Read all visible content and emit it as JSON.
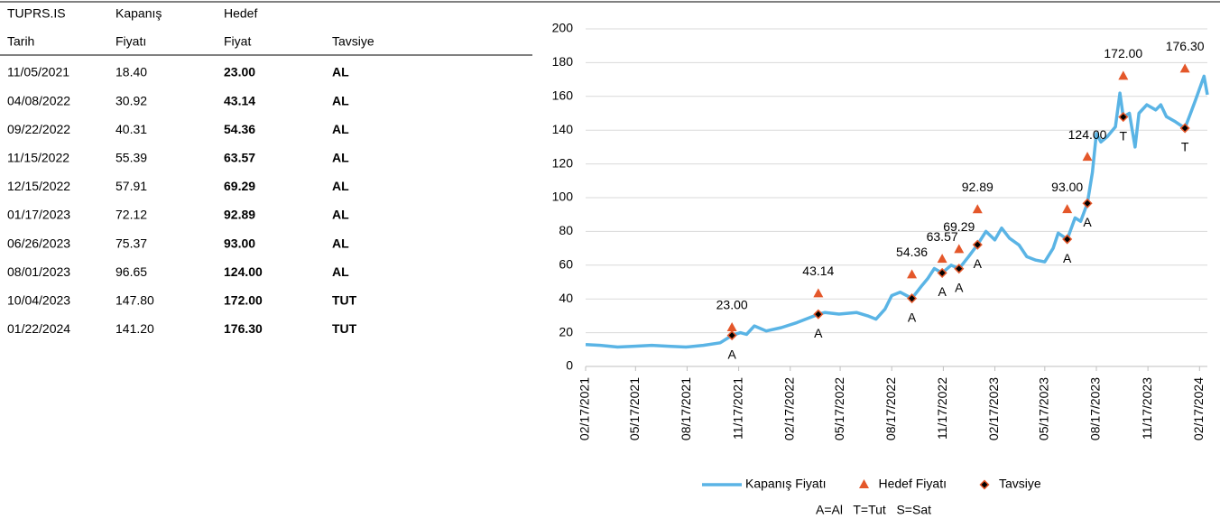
{
  "table": {
    "header": [
      [
        "TUPRS.IS",
        "Kapanış",
        "Hedef"
      ],
      [
        "Tarih",
        "Fiyatı",
        "Fiyat",
        "Tavsiye"
      ]
    ],
    "rows": [
      [
        "11/05/2021",
        "18.40",
        "23.00",
        "AL"
      ],
      [
        "04/08/2022",
        "30.92",
        "43.14",
        "AL"
      ],
      [
        "09/22/2022",
        "40.31",
        "54.36",
        "AL"
      ],
      [
        "11/15/2022",
        "55.39",
        "63.57",
        "AL"
      ],
      [
        "12/15/2022",
        "57.91",
        "69.29",
        "AL"
      ],
      [
        "01/17/2023",
        "72.12",
        "92.89",
        "AL"
      ],
      [
        "06/26/2023",
        "75.37",
        "93.00",
        "AL"
      ],
      [
        "08/01/2023",
        "96.65",
        "124.00",
        "AL"
      ],
      [
        "10/04/2023",
        "147.80",
        "172.00",
        "TUT"
      ],
      [
        "01/22/2024",
        "141.20",
        "176.30",
        "TUT"
      ]
    ]
  },
  "chart_data": {
    "type": "line",
    "xlim": [
      "02/17/2021",
      "03/02/2024"
    ],
    "xticks": [
      "02/17/2021",
      "05/17/2021",
      "08/17/2021",
      "11/17/2021",
      "02/17/2022",
      "05/17/2022",
      "08/17/2022",
      "11/17/2022",
      "02/17/2023",
      "05/17/2023",
      "08/17/2023",
      "11/17/2023",
      "02/17/2024"
    ],
    "ylim": [
      0,
      200
    ],
    "yticks": [
      0,
      20,
      40,
      60,
      80,
      100,
      120,
      140,
      160,
      180,
      200
    ],
    "grid": true,
    "series": [
      {
        "name": "Kapanış Fiyatı",
        "color": "#5ab4e5",
        "marker": "line",
        "x": [
          "02/17/2021",
          "03/15/2021",
          "04/15/2021",
          "05/15/2021",
          "06/15/2021",
          "07/15/2021",
          "08/15/2021",
          "09/15/2021",
          "10/15/2021",
          "11/05/2021",
          "11/20/2021",
          "12/01/2021",
          "12/15/2021",
          "01/05/2022",
          "02/01/2022",
          "03/01/2022",
          "04/08/2022",
          "04/20/2022",
          "05/15/2022",
          "06/15/2022",
          "07/05/2022",
          "07/20/2022",
          "08/05/2022",
          "08/17/2022",
          "09/01/2022",
          "09/22/2022",
          "10/10/2022",
          "10/20/2022",
          "11/01/2022",
          "11/15/2022",
          "12/01/2022",
          "12/15/2022",
          "01/01/2023",
          "01/17/2023",
          "02/01/2023",
          "02/17/2023",
          "03/01/2023",
          "03/15/2023",
          "04/01/2023",
          "04/15/2023",
          "05/01/2023",
          "05/17/2023",
          "06/01/2023",
          "06/10/2023",
          "06/26/2023",
          "07/10/2023",
          "07/20/2023",
          "08/01/2023",
          "08/10/2023",
          "08/17/2023",
          "08/25/2023",
          "09/05/2023",
          "09/20/2023",
          "09/28/2023",
          "10/04/2023",
          "10/15/2023",
          "10/25/2023",
          "11/01/2023",
          "11/15/2023",
          "12/01/2023",
          "12/10/2023",
          "12/20/2023",
          "01/05/2024",
          "01/22/2024",
          "02/01/2024",
          "02/10/2024",
          "02/25/2024",
          "03/02/2024"
        ],
        "values": [
          13,
          12.5,
          11.5,
          12,
          12.5,
          12,
          11.5,
          12.5,
          14,
          18.4,
          20,
          19,
          24,
          21,
          23,
          26,
          30.92,
          32,
          31,
          32,
          30,
          28,
          34,
          42,
          44,
          40.31,
          48,
          52,
          58,
          55.39,
          60,
          57.91,
          65,
          72.12,
          80,
          75,
          82,
          76,
          72,
          65,
          63,
          62,
          70,
          79,
          75.37,
          88,
          86,
          96.65,
          115,
          138,
          133,
          136,
          142,
          162,
          147.8,
          150,
          130,
          150,
          155,
          152,
          155,
          148,
          145,
          141.2,
          150,
          158,
          172,
          161
        ]
      },
      {
        "name": "Hedef Fiyatı",
        "color": "#e4572a",
        "marker": "triangle",
        "x": [
          "11/05/2021",
          "04/08/2022",
          "09/22/2022",
          "11/15/2022",
          "12/15/2022",
          "01/17/2023",
          "06/26/2023",
          "08/01/2023",
          "10/04/2023",
          "01/22/2024"
        ],
        "values": [
          23,
          43.14,
          54.36,
          63.57,
          69.29,
          92.89,
          93,
          124,
          172,
          176.3
        ],
        "value_labels": [
          "23.00",
          "43.14",
          "54.36",
          "63.57",
          "69.29",
          "92.89",
          "93.00",
          "124.00",
          "172.00",
          "176.30"
        ]
      },
      {
        "name": "Tavsiye",
        "color": "#e4572a",
        "marker": "diamond",
        "x": [
          "11/05/2021",
          "04/08/2022",
          "09/22/2022",
          "11/15/2022",
          "12/15/2022",
          "01/17/2023",
          "06/26/2023",
          "08/01/2023",
          "10/04/2023",
          "01/22/2024"
        ],
        "values": [
          18.4,
          30.92,
          40.31,
          55.39,
          57.91,
          72.12,
          75.37,
          96.65,
          147.8,
          141.2
        ],
        "point_labels": [
          "A",
          "A",
          "A",
          "A",
          "A",
          "A",
          "A",
          "A",
          "T",
          "T"
        ]
      }
    ],
    "annotation": "A=Al   T=Tut   S=Sat"
  }
}
